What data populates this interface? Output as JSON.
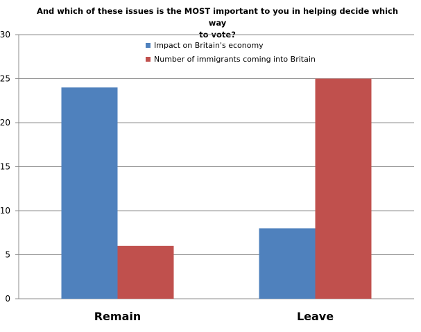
{
  "chart_data": {
    "type": "bar",
    "title_line1": "And which of these issues is the MOST important to you in helping decide which way",
    "title_line2": "to vote?",
    "categories": [
      "Remain",
      "Leave"
    ],
    "series": [
      {
        "name": "Impact on Britain's economy",
        "values": [
          24,
          8
        ],
        "color": "#4F81BD"
      },
      {
        "name": "Number of immigrants coming into Britain",
        "values": [
          6,
          25
        ],
        "color": "#C0504D"
      }
    ],
    "ylim": [
      0,
      30
    ],
    "yticks": [
      0,
      5,
      10,
      15,
      20,
      25,
      30
    ],
    "grid": true,
    "legend_position": "top-right"
  }
}
